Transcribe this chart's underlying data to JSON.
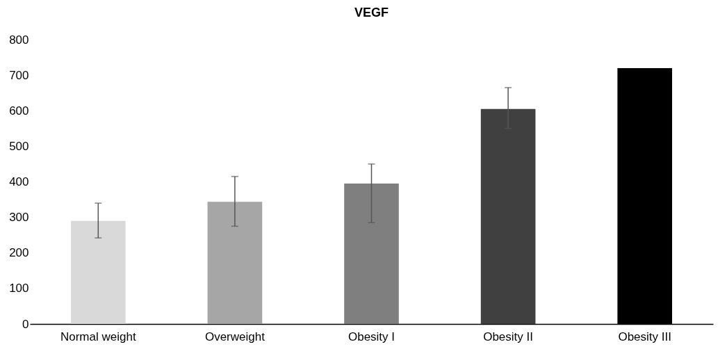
{
  "chart_data": {
    "type": "bar",
    "title": "VEGF",
    "categories": [
      "Normal weight",
      "Overweight",
      "Obesity I",
      "Obesity II",
      "Obesity III"
    ],
    "values": [
      290,
      344,
      395,
      605,
      720
    ],
    "colors": [
      "#d9d9d9",
      "#a6a6a6",
      "#7f7f7f",
      "#404040",
      "#000000"
    ],
    "errors": [
      [
        242,
        340
      ],
      [
        275,
        415
      ],
      [
        285,
        450
      ],
      [
        550,
        665
      ],
      null
    ],
    "ylim": [
      0,
      800
    ],
    "yticks": [
      0,
      100,
      200,
      300,
      400,
      500,
      600,
      700,
      800
    ],
    "grid": false,
    "legend": false
  }
}
